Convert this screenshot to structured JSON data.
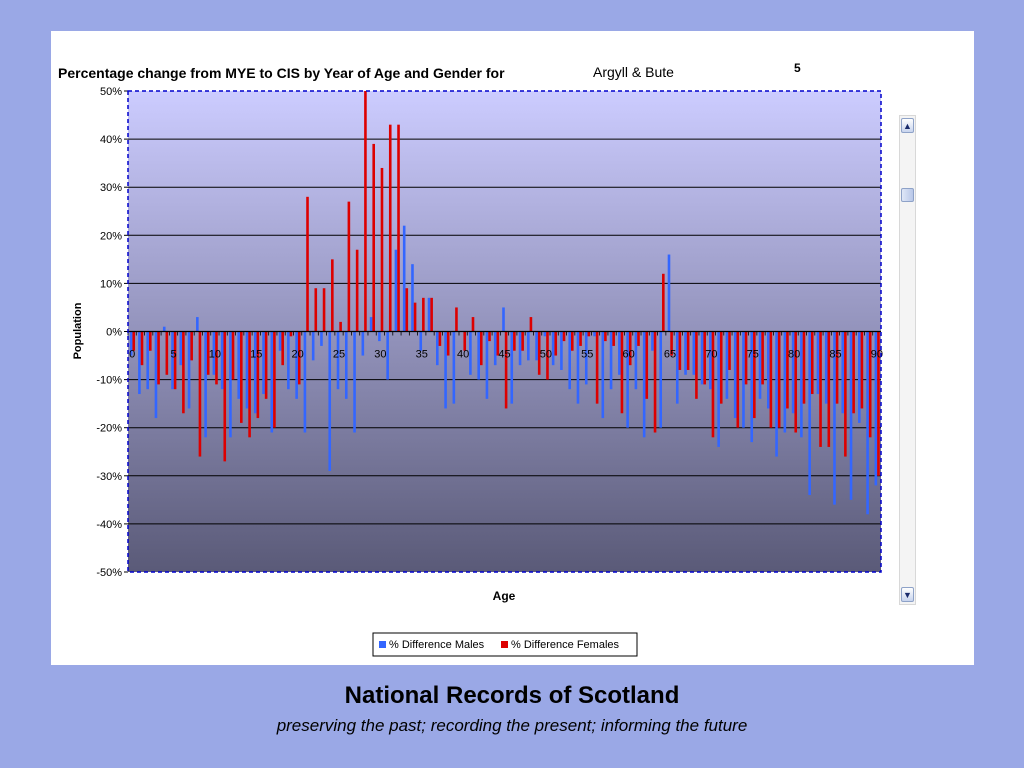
{
  "header": {
    "title": "Percentage change from MYE to CIS by Year of Age and Gender for",
    "area": "Argyll & Bute",
    "number": "5"
  },
  "footer": {
    "title": "National Records of Scotland",
    "tagline": "preserving the past; recording the present; informing the future"
  },
  "colors": {
    "males": "#3366ff",
    "females": "#dd0000",
    "plot_top": "#ccccff",
    "plot_bottom": "#5a5a78",
    "plot_border": "#0000cc"
  },
  "chart_data": {
    "type": "bar",
    "xlabel": "Age",
    "ylabel": "Population",
    "ylim": [
      -50,
      50
    ],
    "y_ticks": [
      "-50%",
      "-40%",
      "-30%",
      "-20%",
      "-10%",
      "0%",
      "10%",
      "20%",
      "30%",
      "40%",
      "50%"
    ],
    "x_ticks": [
      "0",
      "5",
      "10",
      "15",
      "20",
      "25",
      "30",
      "35",
      "40",
      "45",
      "50",
      "55",
      "60",
      "65",
      "70",
      "75",
      "80",
      "85",
      "90"
    ],
    "categories": [
      0,
      1,
      2,
      3,
      4,
      5,
      6,
      7,
      8,
      9,
      10,
      11,
      12,
      13,
      14,
      15,
      16,
      17,
      18,
      19,
      20,
      21,
      22,
      23,
      24,
      25,
      26,
      27,
      28,
      29,
      30,
      31,
      32,
      33,
      34,
      35,
      36,
      37,
      38,
      39,
      40,
      41,
      42,
      43,
      44,
      45,
      46,
      47,
      48,
      49,
      50,
      51,
      52,
      53,
      54,
      55,
      56,
      57,
      58,
      59,
      60,
      61,
      62,
      63,
      64,
      65,
      66,
      67,
      68,
      69,
      70,
      71,
      72,
      73,
      74,
      75,
      76,
      77,
      78,
      79,
      80,
      81,
      82,
      83,
      84,
      85,
      86,
      87,
      88,
      89,
      90
    ],
    "legend_position": "bottom",
    "grid": true,
    "series": [
      {
        "name": "% Difference Males",
        "values": [
          -5,
          -13,
          -12,
          -18,
          1,
          -12,
          -7,
          -16,
          3,
          -22,
          -9,
          -12,
          -22,
          -14,
          -16,
          -17,
          -13,
          -21,
          -4,
          -12,
          -14,
          -21,
          -6,
          -3,
          -29,
          -12,
          -14,
          -21,
          -5,
          3,
          -2,
          -10,
          17,
          22,
          14,
          -4,
          7,
          -7,
          -16,
          -15,
          0,
          -9,
          -10,
          -14,
          -7,
          5,
          -15,
          -7,
          -6,
          -6,
          -1,
          -7,
          -8,
          -12,
          -15,
          -11,
          -1,
          -18,
          -12,
          -9,
          -20,
          -12,
          -22,
          -4,
          -20,
          16,
          -15,
          -9,
          -9,
          -11,
          -12,
          -24,
          -14,
          -18,
          -20,
          -23,
          -14,
          -16,
          -26,
          -21,
          -17,
          -22,
          -34,
          -13,
          -15,
          -36,
          -17,
          -35,
          -19,
          -38,
          -32
        ],
        "color": "#3366ff"
      },
      {
        "name": "% Difference Females",
        "values": [
          -4,
          -7,
          -4,
          -11,
          -9,
          -12,
          -17,
          -6,
          -26,
          -9,
          -11,
          -27,
          -10,
          -19,
          -22,
          -18,
          -14,
          -20,
          -7,
          -1,
          -11,
          28,
          9,
          9,
          15,
          2,
          27,
          17,
          50,
          39,
          34,
          43,
          43,
          9,
          6,
          7,
          7,
          -3,
          -5,
          5,
          -4,
          3,
          -7,
          -2,
          -5,
          -16,
          -4,
          -4,
          3,
          -9,
          -10,
          -5,
          -2,
          -4,
          -3,
          -1,
          -15,
          -2,
          -3,
          -17,
          -7,
          -3,
          -14,
          -21,
          12,
          -5,
          -8,
          -8,
          -14,
          -11,
          -22,
          -15,
          -8,
          -20,
          -11,
          -18,
          -11,
          -20,
          -20,
          -16,
          -21,
          -15,
          -13,
          -24,
          -24,
          -15,
          -26,
          -17,
          -16,
          -22,
          -30
        ],
        "color": "#dd0000"
      }
    ]
  }
}
